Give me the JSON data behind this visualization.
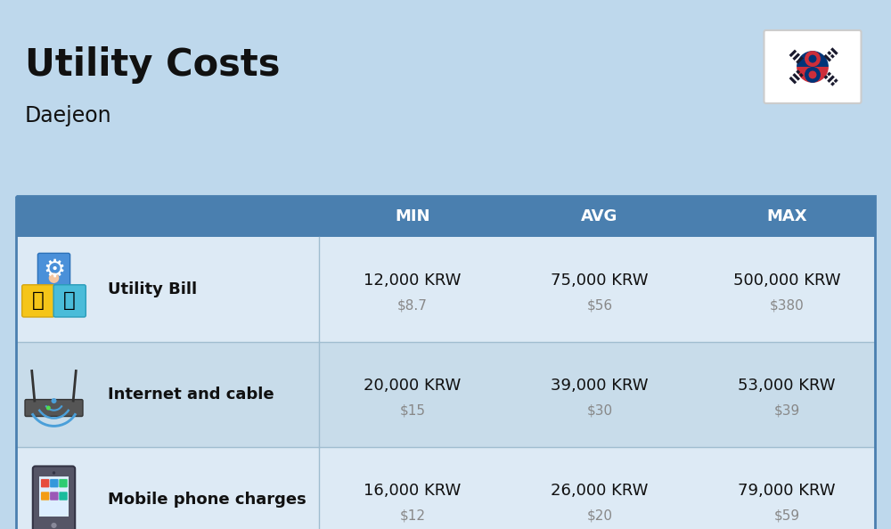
{
  "title": "Utility Costs",
  "subtitle": "Daejeon",
  "background_color": "#bed8ec",
  "header_bg_color": "#4a7faf",
  "header_text_color": "#ffffff",
  "table_bg_even": "#ddeaf5",
  "table_bg_odd": "#c8dcea",
  "row_line_color": "#a0bdd0",
  "col_headers": [
    "MIN",
    "AVG",
    "MAX"
  ],
  "rows": [
    {
      "label": "Utility Bill",
      "min_krw": "12,000 KRW",
      "min_usd": "$8.7",
      "avg_krw": "75,000 KRW",
      "avg_usd": "$56",
      "max_krw": "500,000 KRW",
      "max_usd": "$380"
    },
    {
      "label": "Internet and cable",
      "min_krw": "20,000 KRW",
      "min_usd": "$15",
      "avg_krw": "39,000 KRW",
      "avg_usd": "$30",
      "max_krw": "53,000 KRW",
      "max_usd": "$39"
    },
    {
      "label": "Mobile phone charges",
      "min_krw": "16,000 KRW",
      "min_usd": "$12",
      "avg_krw": "26,000 KRW",
      "avg_usd": "$20",
      "max_krw": "79,000 KRW",
      "max_usd": "$59"
    }
  ],
  "title_fontsize": 30,
  "subtitle_fontsize": 17,
  "header_fontsize": 13,
  "label_fontsize": 13,
  "value_fontsize": 13,
  "usd_fontsize": 11
}
